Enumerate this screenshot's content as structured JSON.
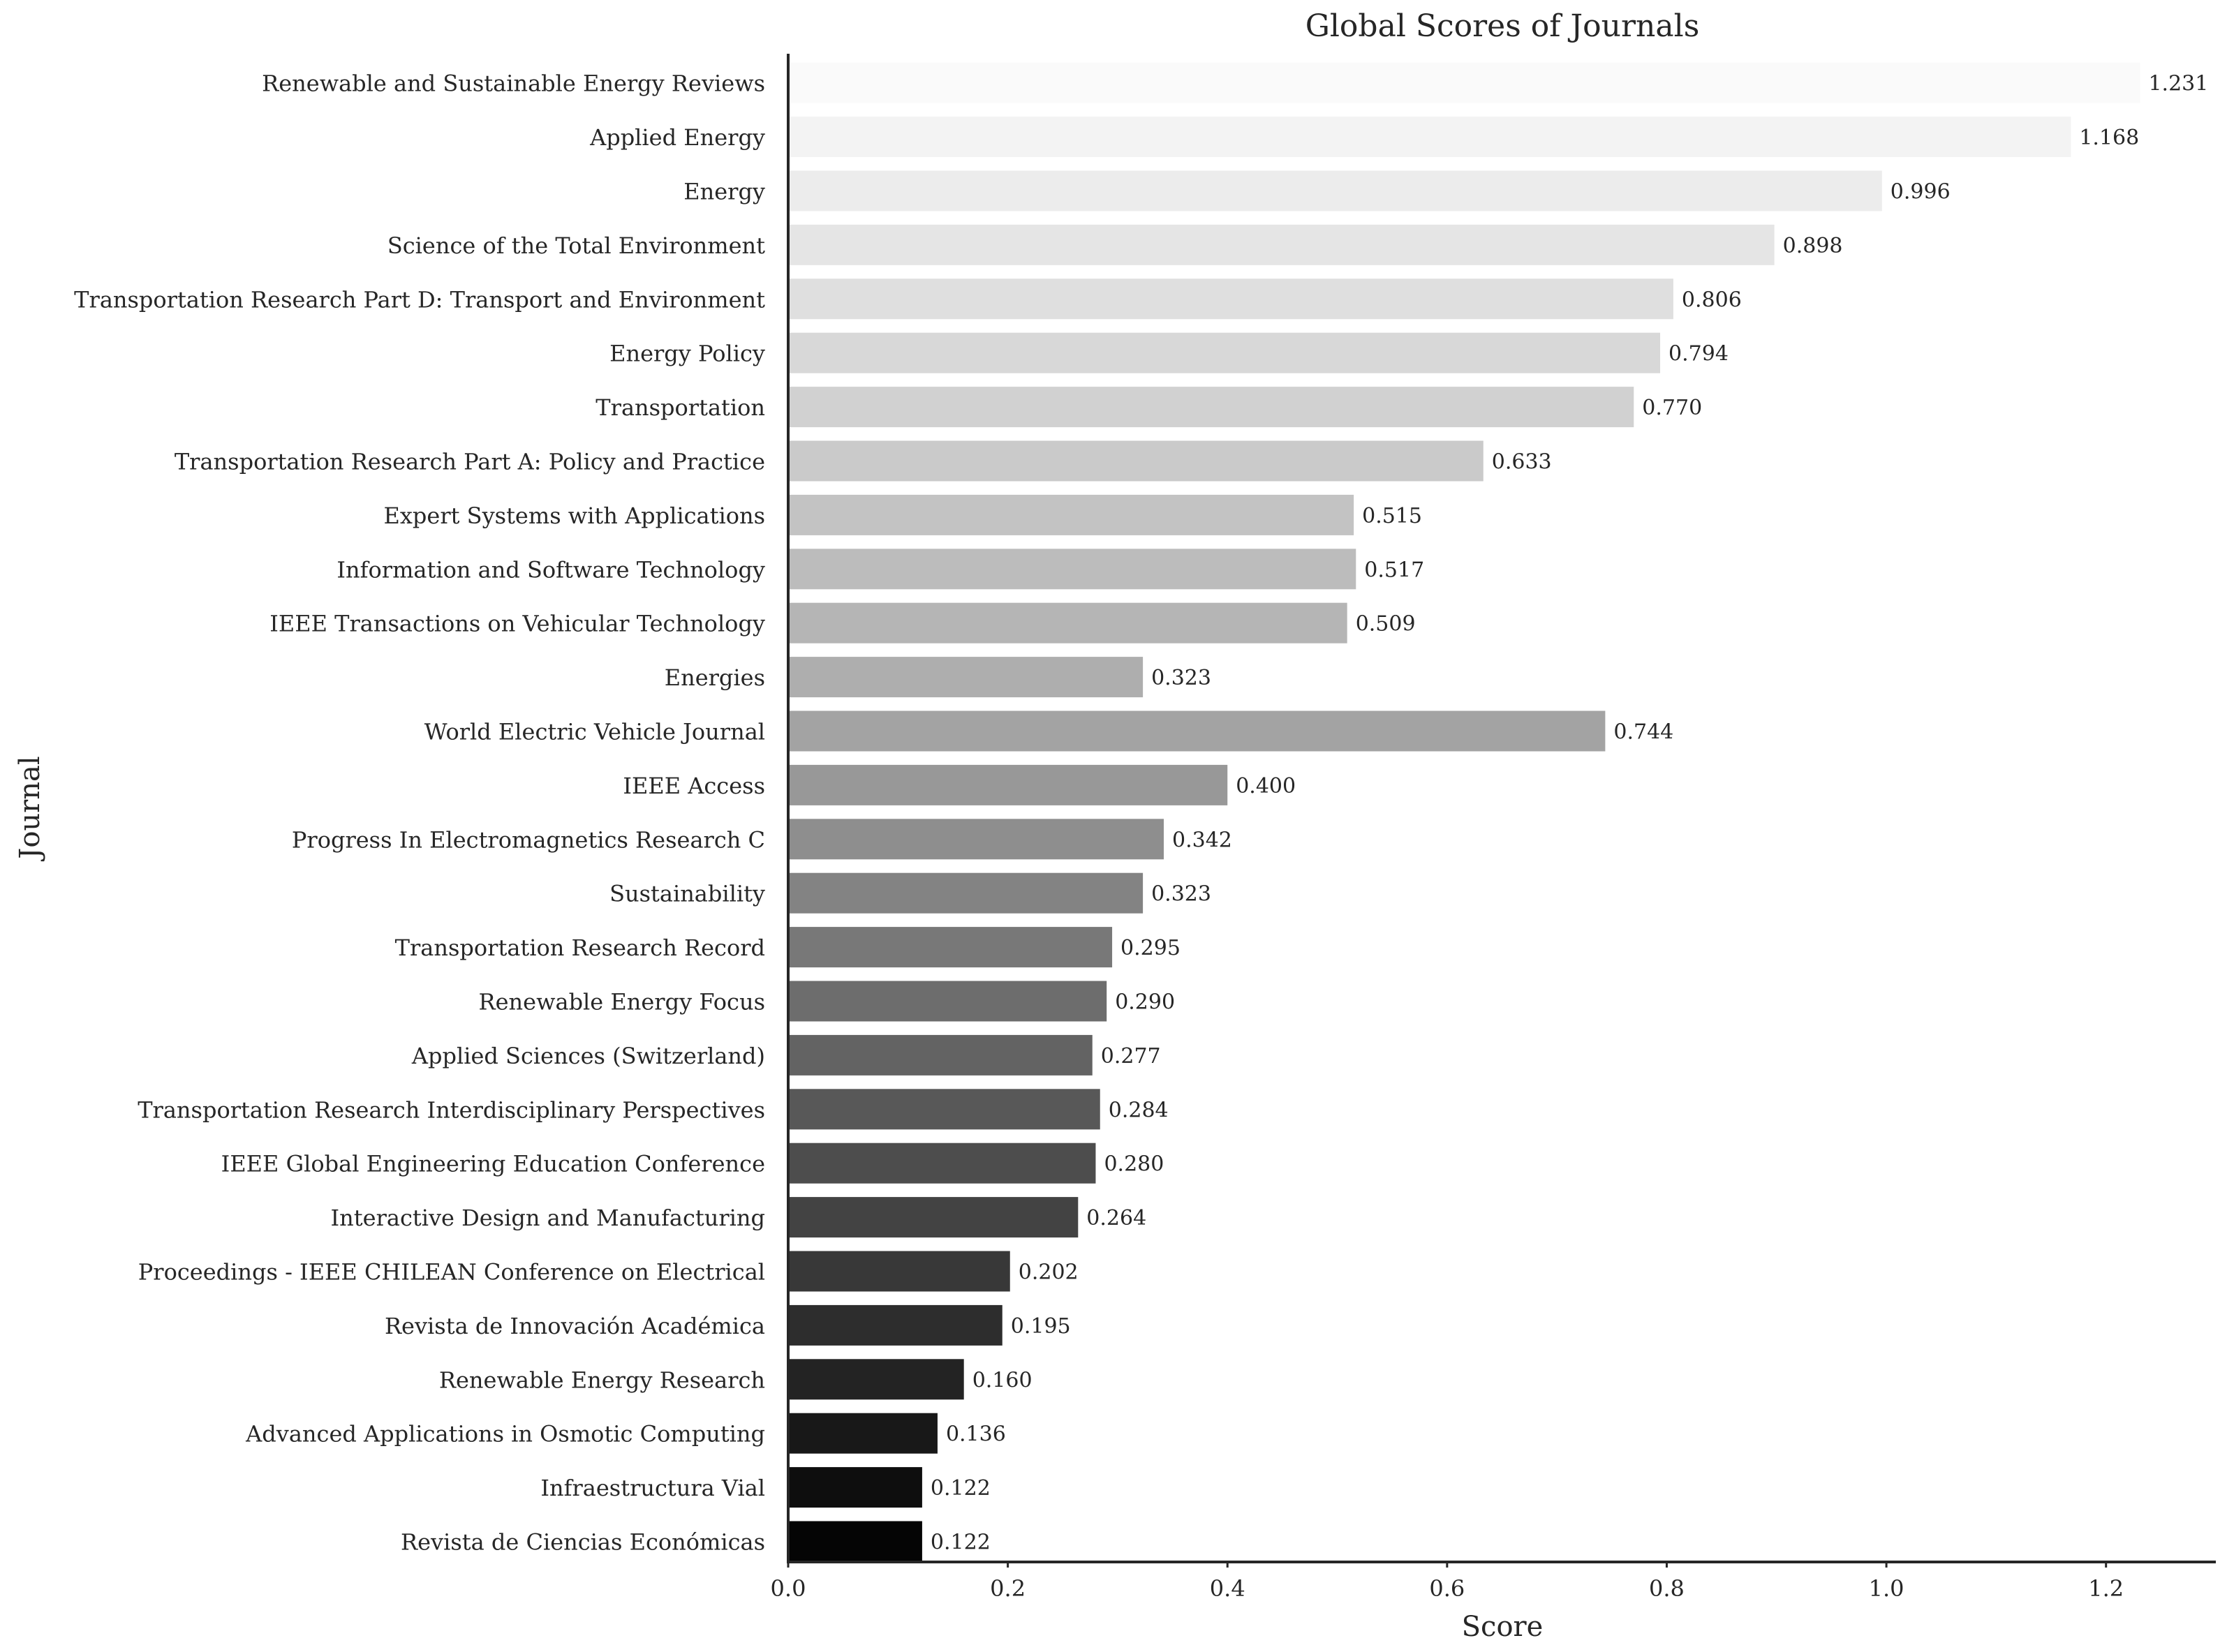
{
  "chart_data": {
    "type": "bar",
    "orientation": "horizontal",
    "title": "Global Scores of Journals",
    "xlabel": "Score",
    "ylabel": "Journal",
    "xlim": [
      0,
      1.3
    ],
    "xticks": [
      "0.0",
      "0.2",
      "0.4",
      "0.6",
      "0.8",
      "1.0",
      "1.2"
    ],
    "grid": false,
    "legend": "none",
    "categories": [
      "Renewable and Sustainable Energy Reviews",
      "Applied Energy",
      "Energy",
      "Science of the Total Environment",
      "Transportation Research Part D: Transport and Environment",
      "Energy Policy",
      "Transportation",
      "Transportation Research Part A: Policy and Practice",
      "Expert Systems with Applications",
      "Information and Software Technology",
      "IEEE Transactions on Vehicular Technology",
      "Energies",
      "World Electric Vehicle Journal",
      "IEEE Access",
      "Progress In Electromagnetics Research C",
      "Sustainability",
      "Transportation Research Record",
      "Renewable Energy Focus",
      "Applied Sciences (Switzerland)",
      "Transportation Research Interdisciplinary Perspectives",
      "IEEE Global Engineering Education Conference",
      "Interactive Design and Manufacturing",
      "Proceedings - IEEE CHILEAN Conference on Electrical",
      "Revista de Innovación Académica",
      "Renewable Energy Research",
      "Advanced Applications in Osmotic Computing",
      "Infraestructura Vial",
      "Revista de Ciencias Económicas"
    ],
    "values": [
      1.231,
      1.168,
      0.996,
      0.898,
      0.806,
      0.794,
      0.77,
      0.633,
      0.515,
      0.517,
      0.509,
      0.323,
      0.744,
      0.4,
      0.342,
      0.323,
      0.295,
      0.29,
      0.277,
      0.284,
      0.28,
      0.264,
      0.202,
      0.195,
      0.16,
      0.136,
      0.122,
      0.122
    ],
    "value_labels": [
      "1.231",
      "1.168",
      "0.996",
      "0.898",
      "0.806",
      "0.794",
      "0.770",
      "0.633",
      "0.515",
      "0.517",
      "0.509",
      "0.323",
      "0.744",
      "0.400",
      "0.342",
      "0.323",
      "0.295",
      "0.290",
      "0.277",
      "0.284",
      "0.280",
      "0.264",
      "0.202",
      "0.195",
      "0.160",
      "0.136",
      "0.122",
      "0.122"
    ],
    "colors": [
      "#fafafa",
      "#f3f3f3",
      "#ececec",
      "#e5e5e5",
      "#dfdfdf",
      "#d8d8d8",
      "#d1d1d1",
      "#cacaca",
      "#c3c3c3",
      "#bcbcbc",
      "#b5b5b5",
      "#aeaeae",
      "#a3a3a3",
      "#989898",
      "#8e8e8e",
      "#838383",
      "#787878",
      "#6d6d6d",
      "#636363",
      "#585858",
      "#4d4d4d",
      "#434343",
      "#383838",
      "#2d2d2d",
      "#232323",
      "#181818",
      "#0e0e0e",
      "#050505"
    ]
  }
}
